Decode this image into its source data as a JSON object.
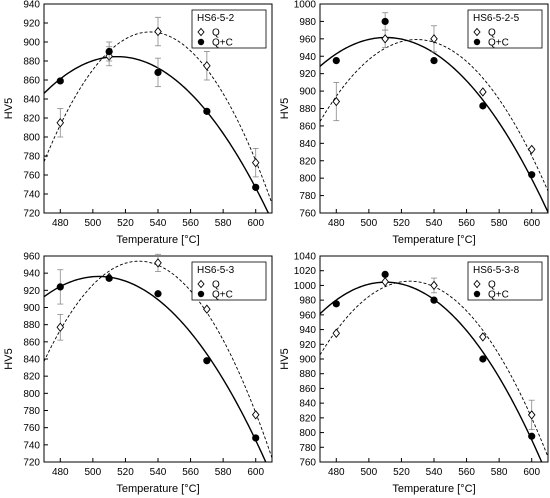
{
  "chart_data": [
    {
      "type": "scatter",
      "title": "HS6-5-2",
      "xlabel": "Temperature  [°C]",
      "ylabel": "HV5",
      "xlim": [
        470,
        610
      ],
      "ylim": [
        720,
        940
      ],
      "xticks": [
        480,
        500,
        520,
        540,
        560,
        580,
        600
      ],
      "yticks": [
        720,
        740,
        760,
        780,
        800,
        820,
        840,
        860,
        880,
        900,
        920,
        940
      ],
      "legend_position": "top-right",
      "series": [
        {
          "name": "Q",
          "marker": "open-diamond",
          "fit": "dashed",
          "x": [
            480,
            510,
            540,
            570,
            600
          ],
          "y": [
            815,
            885,
            911,
            875,
            773
          ],
          "err": [
            15,
            10,
            15,
            15,
            15
          ]
        },
        {
          "name": "Q+C",
          "marker": "filled-circle",
          "fit": "solid",
          "x": [
            480,
            510,
            540,
            570,
            600
          ],
          "y": [
            859,
            890,
            868,
            827,
            747
          ],
          "err": [
            0,
            10,
            15,
            0,
            0
          ]
        }
      ]
    },
    {
      "type": "scatter",
      "title": "HS6-5-2-5",
      "xlabel": "Temperature  [°C]",
      "ylabel": "HV5",
      "xlim": [
        470,
        610
      ],
      "ylim": [
        760,
        1000
      ],
      "xticks": [
        480,
        500,
        520,
        540,
        560,
        580,
        600
      ],
      "yticks": [
        760,
        780,
        800,
        820,
        840,
        860,
        880,
        900,
        920,
        940,
        960,
        980,
        1000
      ],
      "legend_position": "top-right",
      "series": [
        {
          "name": "Q",
          "marker": "open-diamond",
          "fit": "dashed",
          "x": [
            480,
            510,
            540,
            570,
            600
          ],
          "y": [
            888,
            960,
            960,
            899,
            833
          ],
          "err": [
            22,
            10,
            15,
            0,
            0
          ]
        },
        {
          "name": "Q+C",
          "marker": "filled-circle",
          "fit": "solid",
          "x": [
            480,
            510,
            540,
            570,
            600
          ],
          "y": [
            935,
            980,
            935,
            883,
            804
          ],
          "err": [
            0,
            10,
            0,
            0,
            0
          ]
        }
      ]
    },
    {
      "type": "scatter",
      "title": "HS6-5-3",
      "xlabel": "Temperature  [°C]",
      "ylabel": "HV5",
      "xlim": [
        470,
        610
      ],
      "ylim": [
        720,
        960
      ],
      "xticks": [
        480,
        500,
        520,
        540,
        560,
        580,
        600
      ],
      "yticks": [
        720,
        740,
        760,
        780,
        800,
        820,
        840,
        860,
        880,
        900,
        920,
        940,
        960
      ],
      "legend_position": "top-right",
      "series": [
        {
          "name": "Q",
          "marker": "open-diamond",
          "fit": "dashed",
          "x": [
            480,
            510,
            540,
            570,
            600
          ],
          "y": [
            877,
            935,
            952,
            898,
            775
          ],
          "err": [
            15,
            0,
            10,
            0,
            0
          ]
        },
        {
          "name": "Q+C",
          "marker": "filled-circle",
          "fit": "solid",
          "x": [
            480,
            510,
            540,
            570,
            600
          ],
          "y": [
            924,
            934,
            916,
            838,
            748
          ],
          "err": [
            20,
            0,
            0,
            0,
            0
          ]
        }
      ]
    },
    {
      "type": "scatter",
      "title": "HS6-5-3-8",
      "xlabel": "Temperature  [°C]",
      "ylabel": "HV5",
      "xlim": [
        470,
        610
      ],
      "ylim": [
        760,
        1040
      ],
      "xticks": [
        480,
        500,
        520,
        540,
        560,
        580,
        600
      ],
      "yticks": [
        760,
        780,
        800,
        820,
        840,
        860,
        880,
        900,
        920,
        940,
        960,
        980,
        1000,
        1020,
        1040
      ],
      "legend_position": "top-right",
      "series": [
        {
          "name": "Q",
          "marker": "open-diamond",
          "fit": "dashed",
          "x": [
            480,
            510,
            540,
            570,
            600
          ],
          "y": [
            935,
            1005,
            1000,
            930,
            824
          ],
          "err": [
            0,
            0,
            10,
            0,
            20
          ]
        },
        {
          "name": "Q+C",
          "marker": "filled-circle",
          "fit": "solid",
          "x": [
            480,
            510,
            540,
            570,
            600
          ],
          "y": [
            975,
            1015,
            980,
            900,
            795
          ],
          "err": [
            0,
            0,
            0,
            0,
            0
          ]
        }
      ]
    }
  ]
}
